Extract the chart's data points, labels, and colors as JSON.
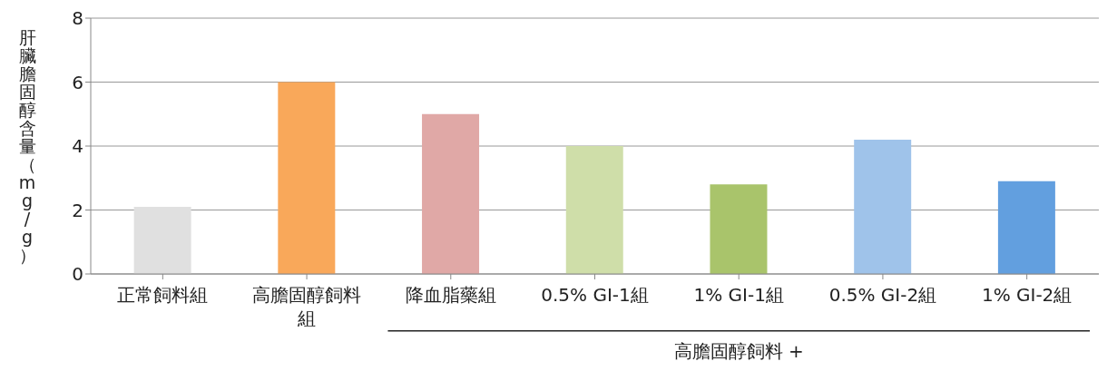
{
  "chart_data": {
    "type": "bar",
    "ylabel": "肝臟膽固醇含量（mg/g）",
    "categories": [
      "正常飼料組",
      "高膽固醇飼料組",
      "降血脂藥組",
      "0.5% GI-1組",
      "1% GI-1組",
      "0.5% GI-2組",
      "1% GI-2組"
    ],
    "values": [
      2.1,
      6.0,
      5.0,
      4.0,
      2.8,
      4.2,
      2.9
    ],
    "colors": [
      "#e0e0e0",
      "#f9a85a",
      "#e0a8a6",
      "#cfdea9",
      "#a9c46b",
      "#9fc3ea",
      "#629fdf"
    ],
    "ylim": [
      0,
      8
    ],
    "yticks": [
      0,
      2,
      4,
      6,
      8
    ],
    "grid": "y",
    "annotations": [
      "高膽固醇飼料 +"
    ]
  }
}
